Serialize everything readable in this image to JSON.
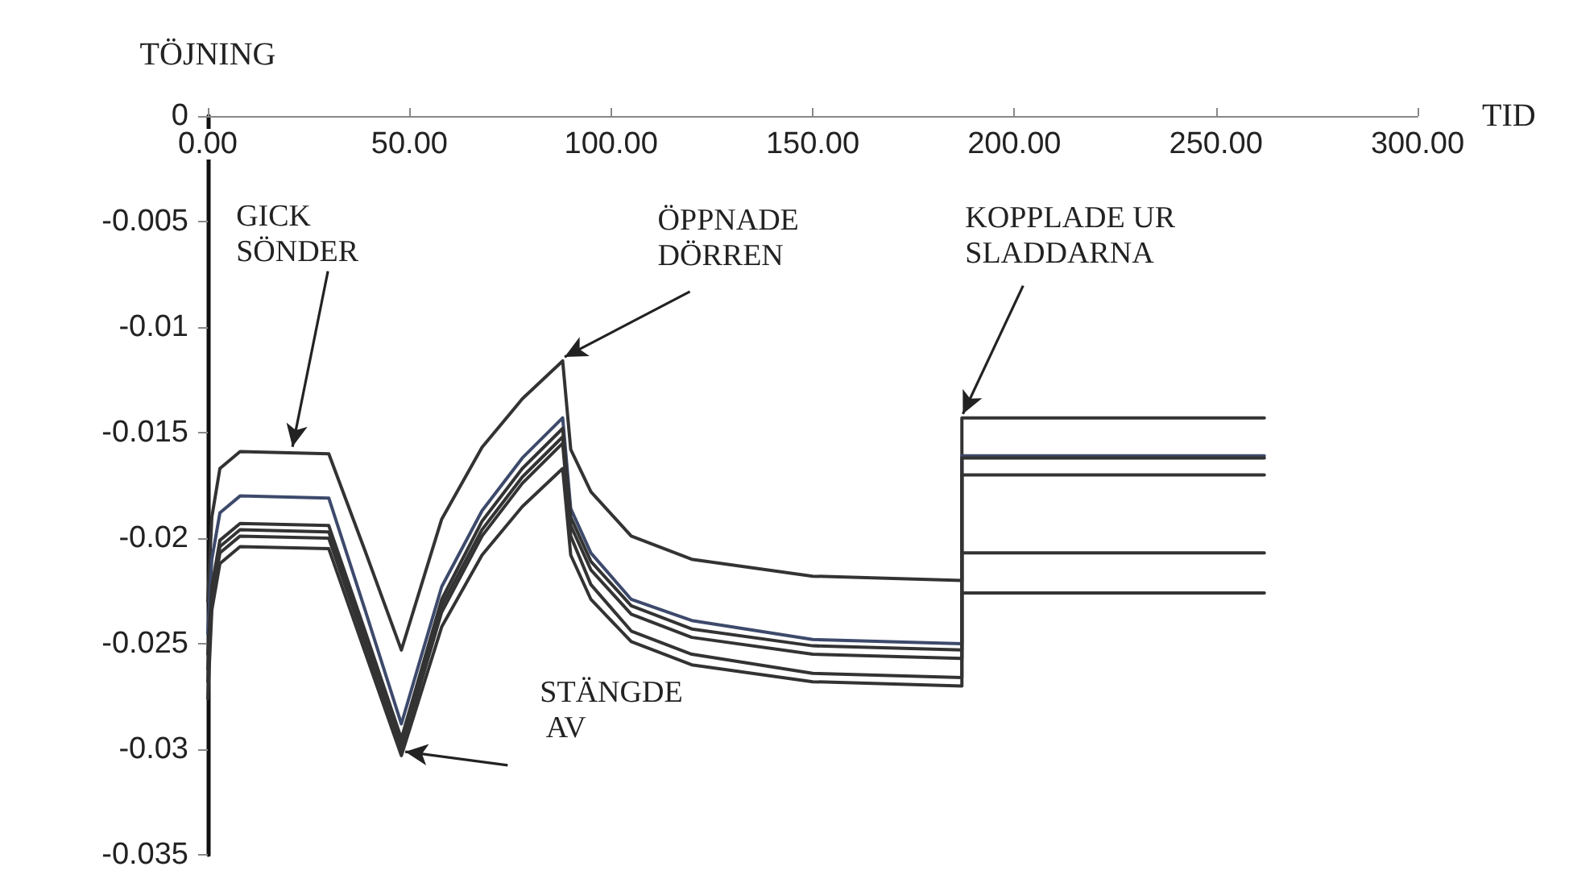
{
  "chart_data": {
    "type": "line",
    "xlabel": "TID",
    "ylabel": "TÖJNING",
    "annotations": [
      {
        "text": "GICK SÖNDER",
        "x": 21,
        "y": -0.0159
      },
      {
        "text": "ÖPPNADE DÖRREN",
        "x": 88,
        "y": -0.0116
      },
      {
        "text": "STÄNGDE AV",
        "x": 48,
        "y": -0.0303
      },
      {
        "text": "KOPPLADE UR SLADDARNA",
        "x": 187,
        "y": -0.0143
      }
    ],
    "x": [
      0,
      1,
      3,
      8,
      30,
      39,
      48,
      58,
      68,
      78,
      88,
      90,
      95,
      105,
      120,
      150,
      187,
      187,
      262
    ],
    "series": [
      {
        "color": "#333333",
        "values": [
          -0.023,
          -0.019,
          -0.0167,
          -0.0159,
          -0.016,
          -0.0206,
          -0.0253,
          -0.0191,
          -0.0157,
          -0.0134,
          -0.0116,
          -0.0158,
          -0.0178,
          -0.0199,
          -0.021,
          -0.0218,
          -0.022,
          -0.0143,
          -0.0143
        ]
      },
      {
        "color": "#3d4a6b",
        "values": [
          -0.0245,
          -0.021,
          -0.0188,
          -0.018,
          -0.0181,
          -0.0234,
          -0.0288,
          -0.0223,
          -0.0187,
          -0.0162,
          -0.0143,
          -0.0186,
          -0.0207,
          -0.0229,
          -0.0239,
          -0.0248,
          -0.025,
          -0.0161,
          -0.0161
        ]
      },
      {
        "color": "#333333",
        "values": [
          -0.0255,
          -0.0223,
          -0.0201,
          -0.0193,
          -0.0194,
          -0.0244,
          -0.0295,
          -0.0229,
          -0.0192,
          -0.0167,
          -0.0148,
          -0.019,
          -0.0211,
          -0.0232,
          -0.0243,
          -0.0251,
          -0.0253,
          -0.0162,
          -0.0162
        ]
      },
      {
        "color": "#333333",
        "values": [
          -0.0262,
          -0.0226,
          -0.0204,
          -0.0196,
          -0.0197,
          -0.0247,
          -0.0298,
          -0.0232,
          -0.0196,
          -0.0171,
          -0.0152,
          -0.0194,
          -0.0215,
          -0.0236,
          -0.0247,
          -0.0255,
          -0.0257,
          -0.017,
          -0.017
        ]
      },
      {
        "color": "#333333",
        "values": [
          -0.0268,
          -0.0229,
          -0.0207,
          -0.0199,
          -0.02,
          -0.025,
          -0.03,
          -0.0235,
          -0.0199,
          -0.0174,
          -0.0155,
          -0.0199,
          -0.0222,
          -0.0244,
          -0.0255,
          -0.0264,
          -0.0266,
          -0.0207,
          -0.0207
        ]
      },
      {
        "color": "#333333",
        "values": [
          -0.0276,
          -0.0234,
          -0.0212,
          -0.0204,
          -0.0205,
          -0.0254,
          -0.0303,
          -0.0242,
          -0.0208,
          -0.0185,
          -0.0167,
          -0.0208,
          -0.0229,
          -0.0249,
          -0.026,
          -0.0268,
          -0.027,
          -0.0226,
          -0.0226
        ]
      }
    ],
    "xlim": [
      0,
      300
    ],
    "xticks": [
      {
        "value": 0,
        "label": "0.00"
      },
      {
        "value": 50,
        "label": "50.00"
      },
      {
        "value": 100,
        "label": "100.00"
      },
      {
        "value": 150,
        "label": "150.00"
      },
      {
        "value": 200,
        "label": "200.00"
      },
      {
        "value": 250,
        "label": "250.00"
      },
      {
        "value": 300,
        "label": "300.00"
      }
    ],
    "ylim": [
      -0.035,
      0
    ],
    "yticks": [
      0,
      -0.005,
      -0.01,
      -0.015,
      -0.02,
      -0.025,
      -0.03,
      -0.035
    ],
    "grid": false,
    "marker": "none",
    "line_style": "solid"
  }
}
